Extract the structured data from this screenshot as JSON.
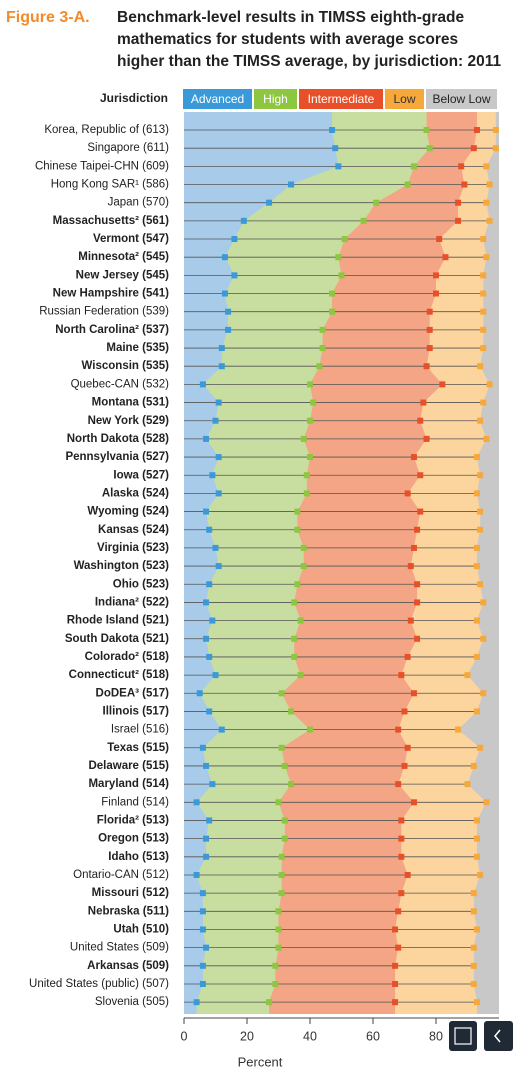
{
  "chart_data": {
    "type": "benchmark",
    "figure_label": "Figure 3-A.",
    "title_lines": [
      "Benchmark-level results in TIMSS eighth-grade",
      "mathematics for students with average scores",
      "higher than the TIMSS average, by jurisdiction: 2011"
    ],
    "category_header": "Jurisdiction",
    "x_label": "Percent",
    "xlim": [
      0,
      100
    ],
    "xticks": [
      0,
      20,
      40,
      60,
      80
    ],
    "categories": [
      "Korea, Republic of (613)",
      "Singapore (611)",
      "Chinese Taipei-CHN (609)",
      "Hong Kong SAR¹ (586)",
      "Japan (570)",
      "Massachusetts² (561)",
      "Vermont (547)",
      "Minnesota² (545)",
      "New Jersey (545)",
      "New Hampshire (541)",
      "Russian Federation (539)",
      "North Carolina² (537)",
      "Maine (535)",
      "Wisconsin (535)",
      "Quebec-CAN (532)",
      "Montana (531)",
      "New York (529)",
      "North Dakota (528)",
      "Pennsylvania (527)",
      "Iowa (527)",
      "Alaska (524)",
      "Wyoming (524)",
      "Kansas (524)",
      "Virginia (523)",
      "Washington (523)",
      "Ohio (523)",
      "Indiana² (522)",
      "Rhode Island (521)",
      "South Dakota (521)",
      "Colorado² (518)",
      "Connecticut² (518)",
      "DoDEA³ (517)",
      "Illinois (517)",
      "Israel (516)",
      "Texas (515)",
      "Delaware (515)",
      "Maryland (514)",
      "Finland (514)",
      "Florida² (513)",
      "Oregon (513)",
      "Idaho (513)",
      "Ontario-CAN (512)",
      "Missouri (512)",
      "Nebraska (511)",
      "Utah (510)",
      "United States (509)",
      "Arkansas (509)",
      "United States (public) (507)",
      "Slovenia (505)"
    ],
    "bold": [
      false,
      false,
      false,
      false,
      false,
      true,
      true,
      true,
      true,
      true,
      false,
      true,
      true,
      true,
      false,
      true,
      true,
      true,
      true,
      true,
      true,
      true,
      true,
      true,
      true,
      true,
      true,
      true,
      true,
      true,
      true,
      true,
      true,
      false,
      true,
      true,
      true,
      false,
      true,
      true,
      true,
      false,
      true,
      true,
      true,
      false,
      true,
      false,
      false
    ],
    "series": [
      {
        "name": "Advanced",
        "color": "#3a9ad9",
        "area_color": "#a8cbe9",
        "values": [
          47,
          48,
          49,
          34,
          27,
          19,
          16,
          13,
          16,
          13,
          14,
          14,
          12,
          12,
          6,
          11,
          10,
          7,
          11,
          9,
          11,
          7,
          8,
          10,
          11,
          8,
          7,
          9,
          7,
          8,
          10,
          5,
          8,
          12,
          6,
          7,
          9,
          4,
          8,
          7,
          7,
          4,
          6,
          6,
          6,
          7,
          6,
          6,
          4
        ]
      },
      {
        "name": "High",
        "color": "#8dc63f",
        "area_color": "#c8dda0",
        "values": [
          77,
          78,
          73,
          71,
          61,
          57,
          51,
          49,
          50,
          47,
          47,
          44,
          44,
          43,
          40,
          41,
          40,
          38,
          40,
          39,
          39,
          36,
          36,
          38,
          38,
          36,
          35,
          37,
          35,
          35,
          37,
          31,
          34,
          40,
          31,
          32,
          34,
          30,
          32,
          32,
          31,
          31,
          31,
          30,
          30,
          30,
          29,
          29,
          27
        ]
      },
      {
        "name": "Intermediate",
        "color": "#e8502a",
        "area_color": "#f3a585",
        "values": [
          93,
          92,
          88,
          89,
          87,
          87,
          81,
          83,
          80,
          80,
          78,
          78,
          78,
          77,
          82,
          76,
          75,
          77,
          73,
          75,
          71,
          75,
          74,
          73,
          72,
          74,
          74,
          72,
          74,
          71,
          69,
          73,
          70,
          68,
          71,
          70,
          68,
          73,
          69,
          69,
          69,
          71,
          69,
          68,
          67,
          68,
          67,
          67,
          67
        ]
      },
      {
        "name": "Low",
        "color": "#f7a83b",
        "area_color": "#fcd49d",
        "values": [
          99,
          99,
          96,
          97,
          96,
          97,
          95,
          96,
          95,
          95,
          95,
          95,
          95,
          94,
          97,
          95,
          94,
          96,
          93,
          94,
          93,
          94,
          94,
          93,
          93,
          94,
          95,
          93,
          95,
          93,
          90,
          95,
          93,
          87,
          94,
          92,
          90,
          96,
          93,
          93,
          93,
          94,
          92,
          92,
          93,
          92,
          92,
          92,
          93
        ]
      }
    ],
    "below_name": "Below Low",
    "below_color": "#c8c8c8"
  }
}
